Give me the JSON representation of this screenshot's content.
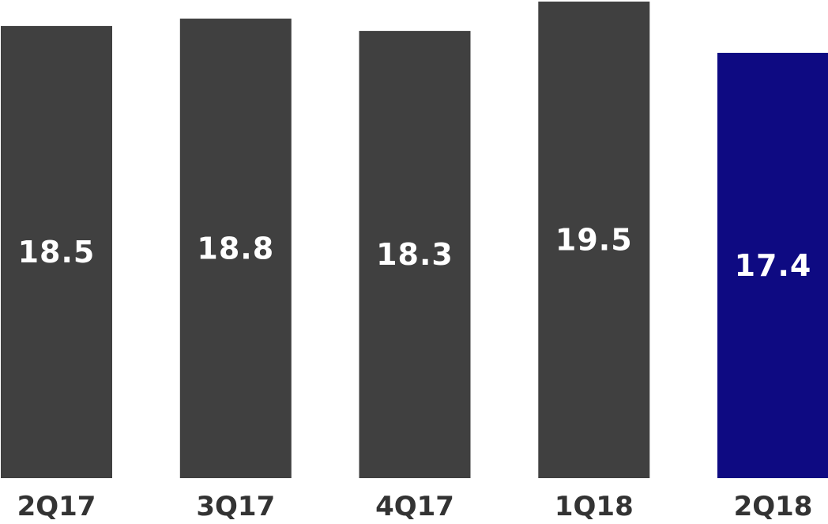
{
  "chart_data": {
    "type": "bar",
    "categories": [
      "2Q17",
      "3Q17",
      "4Q17",
      "1Q18",
      "2Q18"
    ],
    "values": [
      18.5,
      18.8,
      18.3,
      19.5,
      17.4
    ],
    "data_labels": [
      "18.5",
      "18.8",
      "18.3",
      "19.5",
      "17.4"
    ],
    "title": "",
    "xlabel": "",
    "ylabel": "",
    "ylim": [
      0,
      19.5
    ],
    "grid": false,
    "legend": "none",
    "colors": {
      "default_bar": "#404040",
      "highlight_bar": "#0e0a82",
      "value_text": "#ffffff",
      "category_text": "#333333"
    },
    "highlight_index": 4
  }
}
